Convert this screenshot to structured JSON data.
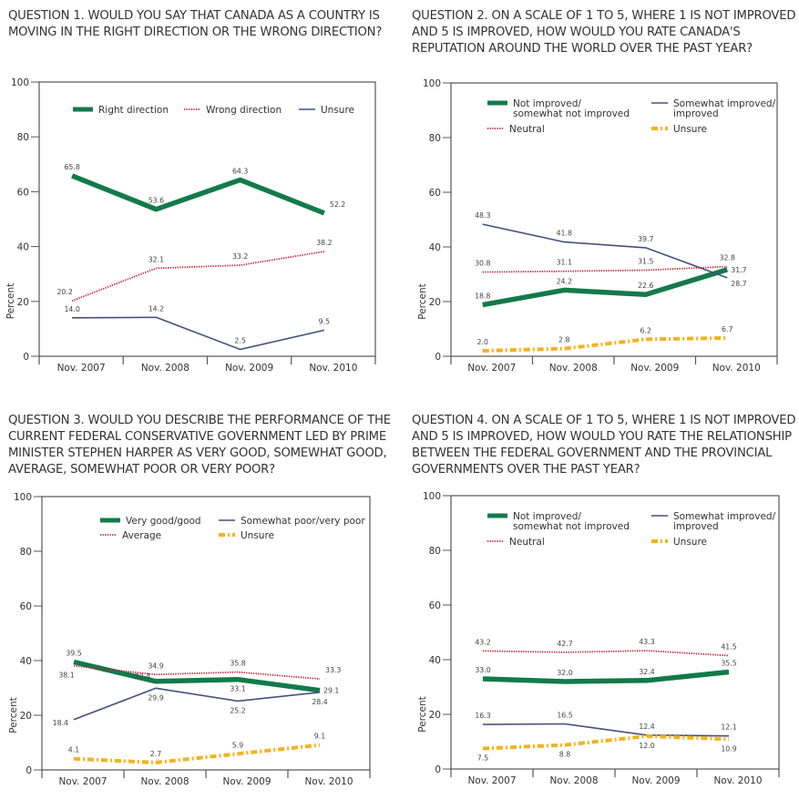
{
  "colors": {
    "green": "#137a4a",
    "red": "#c4203a",
    "navy": "#45507a",
    "orange": "#f5b21a",
    "axis": "#555555"
  },
  "chart_data": [
    {
      "type": "line",
      "title": "QUESTION 1. WOULD YOU SAY THAT CANADA AS A COUNTRY IS MOVING IN THE RIGHT DIRECTION OR THE WRONG DIRECTION?",
      "xlabel": "",
      "ylabel": "Percent",
      "ylim": [
        0,
        100
      ],
      "yticks": [
        "0",
        "20",
        "40",
        "60",
        "80",
        "100"
      ],
      "categories": [
        "Nov. 2007",
        "Nov. 2008",
        "Nov. 2009",
        "Nov. 2010"
      ],
      "legend_layout": "row",
      "legend_position": "top",
      "grid": false,
      "series": [
        {
          "name": "Right direction",
          "style": "thick",
          "color_key": "green",
          "values": [
            65.8,
            53.6,
            64.3,
            52.2
          ],
          "labels": [
            "65.8",
            "53.6",
            "64.3",
            "52.2"
          ],
          "label_pos": [
            "above",
            "above",
            "above",
            "above-right"
          ]
        },
        {
          "name": "Wrong direction",
          "style": "dotted",
          "color_key": "red",
          "values": [
            20.2,
            32.1,
            33.2,
            38.2
          ],
          "labels": [
            "20.2",
            "32.1",
            "33.2",
            "38.2"
          ],
          "label_pos": [
            "above-left",
            "above",
            "above",
            "above"
          ]
        },
        {
          "name": "Unsure",
          "style": "thin",
          "color_key": "navy",
          "values": [
            14.0,
            14.2,
            2.5,
            9.5
          ],
          "labels": [
            "14.0",
            "14.2",
            "2.5",
            "9.5"
          ],
          "label_pos": [
            "above",
            "above",
            "above",
            "above"
          ]
        }
      ]
    },
    {
      "type": "line",
      "title": "QUESTION 2. ON A SCALE OF 1 TO 5, WHERE 1 IS NOT IMPROVED AND 5 IS IMPROVED, HOW WOULD YOU RATE CANADA'S REPUTATION AROUND THE WORLD OVER THE PAST YEAR?",
      "xlabel": "",
      "ylabel": "Percent",
      "ylim": [
        0,
        100
      ],
      "yticks": [
        "0",
        "20",
        "40",
        "60",
        "80",
        "100"
      ],
      "categories": [
        "Nov. 2007",
        "Nov. 2008",
        "Nov. 2009",
        "Nov. 2010"
      ],
      "legend_layout": "grid",
      "legend_position": "top",
      "grid": false,
      "series": [
        {
          "name": "Not improved/\nsomewhat not improved",
          "style": "thick",
          "color_key": "green",
          "values": [
            18.8,
            24.2,
            22.6,
            31.7
          ],
          "labels": [
            "18.8",
            "24.2",
            "22.6",
            "31.7"
          ],
          "label_pos": [
            "above",
            "above",
            "above",
            "right"
          ]
        },
        {
          "name": "Somewhat improved/\nimproved",
          "style": "thin",
          "color_key": "navy",
          "values": [
            48.3,
            41.8,
            39.7,
            28.7
          ],
          "labels": [
            "48.3",
            "41.8",
            "39.7",
            "28.7"
          ],
          "label_pos": [
            "above",
            "above",
            "above",
            "right-below"
          ]
        },
        {
          "name": "Neutral",
          "style": "dotted",
          "color_key": "red",
          "values": [
            30.8,
            31.1,
            31.5,
            32.8
          ],
          "labels": [
            "30.8",
            "31.1",
            "31.5",
            "32.8"
          ],
          "label_pos": [
            "above",
            "above",
            "above",
            "above"
          ]
        },
        {
          "name": "Unsure",
          "style": "dashdot",
          "color_key": "orange",
          "values": [
            2.0,
            2.8,
            6.2,
            6.7
          ],
          "labels": [
            "2.0",
            "2.8",
            "6.2",
            "6.7"
          ],
          "label_pos": [
            "above",
            "above",
            "above",
            "above"
          ]
        }
      ]
    },
    {
      "type": "line",
      "title": "QUESTION 3. WOULD YOU DESCRIBE THE PERFORMANCE OF THE CURRENT FEDERAL CONSERVATIVE GOVERNMENT LED BY PRIME MINISTER STEPHEN HARPER AS VERY GOOD, SOMEWHAT GOOD, AVERAGE, SOMEWHAT POOR OR VERY POOR?",
      "xlabel": "",
      "ylabel": "Percent",
      "ylim": [
        0,
        100
      ],
      "yticks": [
        "0",
        "20",
        "40",
        "60",
        "80",
        "100"
      ],
      "categories": [
        "Nov. 2007",
        "Nov. 2008",
        "Nov. 2009",
        "Nov. 2010"
      ],
      "legend_layout": "grid-compact",
      "legend_position": "top",
      "grid": false,
      "series": [
        {
          "name": "Very good/good",
          "style": "thick",
          "color_key": "green",
          "values": [
            39.5,
            32.4,
            33.1,
            29.1
          ],
          "labels": [
            "39.5",
            "32.4",
            "33.1",
            "29.1"
          ],
          "label_pos": [
            "above",
            "left",
            "below",
            "right"
          ]
        },
        {
          "name": "Somewhat poor/very poor",
          "style": "thin",
          "color_key": "navy",
          "values": [
            18.4,
            29.9,
            25.2,
            28.4
          ],
          "labels": [
            "18.4",
            "29.9",
            "25.2",
            "28.4"
          ],
          "label_pos": [
            "left-below",
            "below",
            "below",
            "below"
          ]
        },
        {
          "name": "Average",
          "style": "dotted",
          "color_key": "red",
          "values": [
            38.1,
            34.9,
            35.8,
            33.3
          ],
          "labels": [
            "38.1",
            "34.9",
            "35.8",
            "33.3"
          ],
          "label_pos": [
            "below-left",
            "above",
            "above",
            "above-right"
          ]
        },
        {
          "name": "Unsure",
          "style": "dashdot",
          "color_key": "orange",
          "values": [
            4.1,
            2.7,
            5.9,
            9.1
          ],
          "labels": [
            "4.1",
            "2.7",
            "5.9",
            "9.1"
          ],
          "label_pos": [
            "above",
            "above",
            "above",
            "above"
          ]
        }
      ]
    },
    {
      "type": "line",
      "title": "QUESTION 4. ON A SCALE OF 1 TO 5, WHERE 1 IS NOT IMPROVED AND 5 IS IMPROVED, HOW WOULD YOU RATE THE RELATIONSHIP BETWEEN THE FEDERAL GOVERNMENT AND THE PROVINCIAL GOVERNMENTS OVER THE PAST YEAR?",
      "xlabel": "",
      "ylabel": "Percent",
      "ylim": [
        0,
        100
      ],
      "yticks": [
        "0",
        "20",
        "40",
        "60",
        "80",
        "100"
      ],
      "categories": [
        "Nov. 2007",
        "Nov. 2008",
        "Nov. 2009",
        "Nov. 2010"
      ],
      "legend_layout": "grid",
      "legend_position": "top",
      "grid": false,
      "series": [
        {
          "name": "Not improved/\nsomewhat not improved",
          "style": "thick",
          "color_key": "green",
          "values": [
            33.0,
            32.0,
            32.4,
            35.5
          ],
          "labels": [
            "33.0",
            "32.0",
            "32.4",
            "35.5"
          ],
          "label_pos": [
            "above",
            "above",
            "above",
            "above"
          ]
        },
        {
          "name": "Somewhat improved/\nimproved",
          "style": "thin",
          "color_key": "navy",
          "values": [
            16.3,
            16.5,
            12.4,
            12.1
          ],
          "labels": [
            "16.3",
            "16.5",
            "12.4",
            "12.1"
          ],
          "label_pos": [
            "above",
            "above",
            "above",
            "above"
          ]
        },
        {
          "name": "Neutral",
          "style": "dotted",
          "color_key": "red",
          "values": [
            43.2,
            42.7,
            43.3,
            41.5
          ],
          "labels": [
            "43.2",
            "42.7",
            "43.3",
            "41.5"
          ],
          "label_pos": [
            "above",
            "above",
            "above",
            "above"
          ]
        },
        {
          "name": "Unsure",
          "style": "dashdot",
          "color_key": "orange",
          "values": [
            7.5,
            8.8,
            12.0,
            10.9
          ],
          "labels": [
            "7.5",
            "8.8",
            "12.0",
            "10.9"
          ],
          "label_pos": [
            "below",
            "below",
            "below",
            "below"
          ]
        }
      ]
    }
  ]
}
